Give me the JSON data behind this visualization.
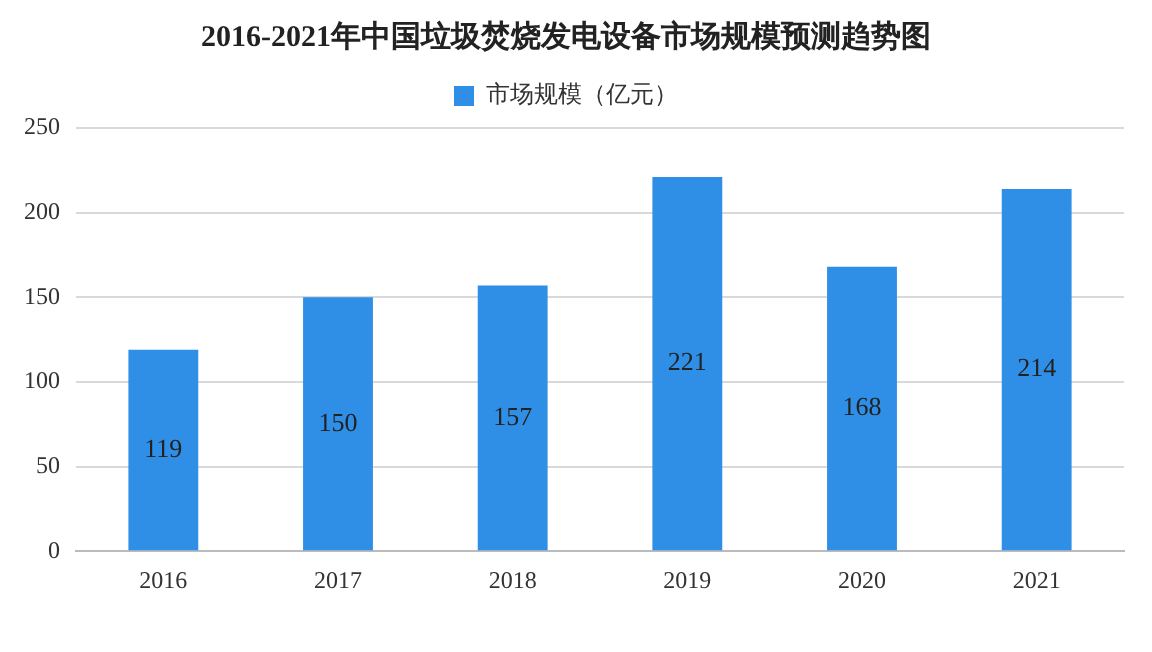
{
  "chart_data": {
    "type": "bar",
    "title": "2016-2021年中国垃圾焚烧发电设备市场规模预测趋势图",
    "categories": [
      "2016",
      "2017",
      "2018",
      "2019",
      "2020",
      "2021"
    ],
    "series": [
      {
        "name": "市场规模（亿元）",
        "color": "#2f8fe6",
        "values": [
          119,
          150,
          157,
          221,
          168,
          214
        ]
      }
    ],
    "ylim": [
      0,
      250
    ],
    "yticks": [
      0,
      50,
      100,
      150,
      200,
      250
    ],
    "grid": "y",
    "legend": "top",
    "data_labels": true
  }
}
